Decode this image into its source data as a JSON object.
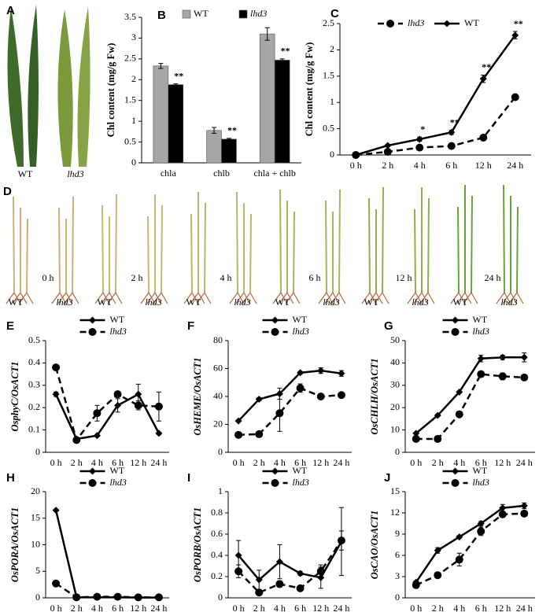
{
  "figure": {
    "A": {
      "letter": "A",
      "labels": [
        "WT",
        "lhd3"
      ]
    },
    "D": {
      "letter": "D",
      "times": [
        "0 h",
        "2 h",
        "4 h",
        "6 h",
        "12 h",
        "24 h"
      ],
      "genotypes": [
        "WT",
        "lhd3"
      ]
    }
  },
  "chart_data": [
    {
      "type": "bar",
      "panel": "B",
      "ylabel": "Chl content (mg/g Fw)",
      "label_weight": "plain",
      "categories": [
        "chla",
        "chlb",
        "chla + chlb"
      ],
      "ylim": [
        0,
        3.5
      ],
      "yticks": [
        0,
        0.5,
        1,
        1.5,
        2,
        2.5,
        3,
        3.5
      ],
      "grid": false,
      "legend": "top",
      "series": [
        {
          "name": "WT",
          "color": "#a6a6a6",
          "font_style": "normal",
          "values": [
            2.33,
            0.78,
            3.1
          ],
          "errors": [
            0.06,
            0.07,
            0.15
          ]
        },
        {
          "name": "lhd3",
          "color": "#000000",
          "font_style": "italic",
          "values": [
            1.88,
            0.57,
            2.47
          ],
          "errors": [
            0.02,
            0.02,
            0.03
          ],
          "significance": [
            "**",
            "**",
            "**"
          ]
        }
      ]
    },
    {
      "type": "line",
      "panel": "C",
      "ylabel": "Chl content (mg/g Fw)",
      "label_weight": "plain",
      "categories": [
        "0 h",
        "2 h",
        "4 h",
        "6 h",
        "12 h",
        "24 h"
      ],
      "ylim": [
        0,
        2.5
      ],
      "yticks": [
        0,
        0.5,
        1,
        1.5,
        2,
        2.5
      ],
      "grid": false,
      "legend": "top",
      "series": [
        {
          "name": "lhd3",
          "color": "#000000",
          "marker": "circle",
          "line_style": "dashed",
          "font_style": "italic",
          "values": [
            0,
            0.06,
            0.14,
            0.17,
            0.33,
            1.1
          ],
          "errors": [
            0,
            0.02,
            0.02,
            0.02,
            0.03,
            0.04
          ]
        },
        {
          "name": "WT",
          "color": "#000000",
          "marker": "diamond",
          "line_style": "solid",
          "font_style": "normal",
          "values": [
            0,
            0.18,
            0.3,
            0.43,
            1.45,
            2.28
          ],
          "errors": [
            0,
            0.02,
            0.04,
            0.04,
            0.07,
            0.07
          ],
          "significance": [
            null,
            null,
            "*",
            "**",
            "**",
            "**"
          ]
        }
      ]
    },
    {
      "type": "line",
      "panel": "E",
      "ylabel": "OsphyC/OsACT1",
      "label_weight": "italic",
      "categories": [
        "0 h",
        "2 h",
        "4 h",
        "6 h",
        "12 h",
        "24 h"
      ],
      "ylim": [
        0,
        0.5
      ],
      "yticks": [
        0,
        0.1,
        0.2,
        0.3,
        0.4,
        0.5
      ],
      "grid": false,
      "legend": "upper center",
      "series": [
        {
          "name": "WT",
          "color": "#000000",
          "marker": "diamond",
          "line_style": "solid",
          "font_style": "normal",
          "values": [
            0.26,
            0.06,
            0.075,
            0.21,
            0.26,
            0.085
          ],
          "errors": [
            0.01,
            0.005,
            0.005,
            0.03,
            0.045,
            0.005
          ]
        },
        {
          "name": "lhd3",
          "color": "#000000",
          "marker": "circle",
          "line_style": "dashed",
          "font_style": "italic",
          "values": [
            0.38,
            0.055,
            0.175,
            0.26,
            0.21,
            0.205
          ],
          "errors": [
            0.01,
            0.005,
            0.035,
            0.005,
            0.02,
            0.065
          ]
        }
      ]
    },
    {
      "type": "line",
      "panel": "F",
      "ylabel": "OsHEME/OsACT1",
      "label_weight": "italic",
      "categories": [
        "0 h",
        "2 h",
        "4 h",
        "6 h",
        "12 h",
        "24 h"
      ],
      "ylim": [
        0,
        80
      ],
      "yticks": [
        0,
        20,
        40,
        60,
        80
      ],
      "grid": false,
      "legend": "upper center",
      "series": [
        {
          "name": "WT",
          "color": "#000000",
          "marker": "diamond",
          "line_style": "solid",
          "font_style": "normal",
          "values": [
            22.5,
            38,
            42,
            57,
            58.5,
            56.5
          ],
          "errors": [
            0.5,
            1,
            4,
            1,
            2,
            2
          ]
        },
        {
          "name": "lhd3",
          "color": "#000000",
          "marker": "circle",
          "line_style": "dashed",
          "font_style": "italic",
          "values": [
            12.5,
            13,
            28,
            46,
            40,
            41
          ],
          "errors": [
            0.5,
            0.5,
            13,
            3,
            1,
            1
          ]
        }
      ]
    },
    {
      "type": "line",
      "panel": "G",
      "ylabel": "OsCHLH/OsACT1",
      "label_weight": "italic",
      "categories": [
        "0 h",
        "2 h",
        "4 h",
        "6 h",
        "12 h",
        "24 h"
      ],
      "ylim": [
        0,
        50
      ],
      "yticks": [
        0,
        10,
        20,
        30,
        40,
        50
      ],
      "grid": false,
      "legend": "upper center",
      "series": [
        {
          "name": "WT",
          "color": "#000000",
          "marker": "diamond",
          "line_style": "solid",
          "font_style": "normal",
          "values": [
            8.5,
            16.5,
            27,
            42,
            42.5,
            42.5
          ],
          "errors": [
            0.3,
            0.3,
            0.3,
            1.5,
            1,
            2
          ]
        },
        {
          "name": "lhd3",
          "color": "#000000",
          "marker": "circle",
          "line_style": "dashed",
          "font_style": "italic",
          "values": [
            6,
            6,
            17,
            35,
            34,
            33.5
          ],
          "errors": [
            0.3,
            0.3,
            0.5,
            1,
            1.5,
            1
          ]
        }
      ]
    },
    {
      "type": "line",
      "panel": "H",
      "ylabel": "OsPORA/OsACT1",
      "label_weight": "italic",
      "categories": [
        "0 h",
        "2 h",
        "4 h",
        "6 h",
        "12 h",
        "24 h"
      ],
      "ylim": [
        0,
        20
      ],
      "yticks": [
        0,
        5,
        10,
        15,
        20
      ],
      "grid": false,
      "legend": "upper center",
      "series": [
        {
          "name": "WT",
          "color": "#000000",
          "marker": "diamond",
          "line_style": "solid",
          "font_style": "normal",
          "values": [
            16.5,
            0.1,
            0.1,
            0.1,
            0.05,
            0.05
          ],
          "errors": [
            0.1,
            0.05,
            0.05,
            0.05,
            0.02,
            0.02
          ]
        },
        {
          "name": "lhd3",
          "color": "#000000",
          "marker": "circle",
          "line_style": "dashed",
          "font_style": "italic",
          "values": [
            2.7,
            0.1,
            0.2,
            0.2,
            0.1,
            0.1
          ],
          "errors": [
            0.1,
            0.05,
            0.1,
            0.05,
            0.05,
            0.05
          ]
        }
      ]
    },
    {
      "type": "line",
      "panel": "I",
      "ylabel": "OsPORB/OsACT1",
      "label_weight": "italic",
      "categories": [
        "0 h",
        "2 h",
        "4 h",
        "6 h",
        "12 h",
        "24 h"
      ],
      "ylim": [
        0,
        1
      ],
      "yticks": [
        0,
        0.2,
        0.4,
        0.6,
        0.8,
        1
      ],
      "grid": false,
      "legend": "upper center",
      "series": [
        {
          "name": "WT",
          "color": "#000000",
          "marker": "diamond",
          "line_style": "solid",
          "font_style": "normal",
          "values": [
            0.4,
            0.17,
            0.34,
            0.23,
            0.19,
            0.53
          ],
          "errors": [
            0.14,
            0.09,
            0.16,
            0.02,
            0.1,
            0.32
          ]
        },
        {
          "name": "lhd3",
          "color": "#000000",
          "marker": "circle",
          "line_style": "dashed",
          "font_style": "italic",
          "values": [
            0.25,
            0.05,
            0.13,
            0.09,
            0.25,
            0.54
          ],
          "errors": [
            0.06,
            0.01,
            0.03,
            0.01,
            0.06,
            0.09
          ]
        }
      ]
    },
    {
      "type": "line",
      "panel": "J",
      "ylabel": "OsCAO/OsACT1",
      "label_weight": "italic",
      "categories": [
        "0 h",
        "2 h",
        "4 h",
        "6 h",
        "12 h",
        "24 h"
      ],
      "ylim": [
        0,
        15
      ],
      "yticks": [
        0,
        3,
        6,
        9,
        12,
        15
      ],
      "grid": false,
      "legend": "upper center",
      "series": [
        {
          "name": "WT",
          "color": "#000000",
          "marker": "diamond",
          "line_style": "solid",
          "font_style": "normal",
          "values": [
            2.2,
            6.7,
            8.6,
            10.5,
            12.7,
            13.0
          ],
          "errors": [
            0.2,
            0.4,
            0.2,
            0.3,
            0.5,
            0.4
          ]
        },
        {
          "name": "lhd3",
          "color": "#000000",
          "marker": "circle",
          "line_style": "dashed",
          "font_style": "italic",
          "values": [
            1.8,
            3.2,
            5.4,
            9.4,
            11.8,
            11.9
          ],
          "errors": [
            0.2,
            0.2,
            0.9,
            0.6,
            0.3,
            0.3
          ]
        }
      ]
    }
  ]
}
